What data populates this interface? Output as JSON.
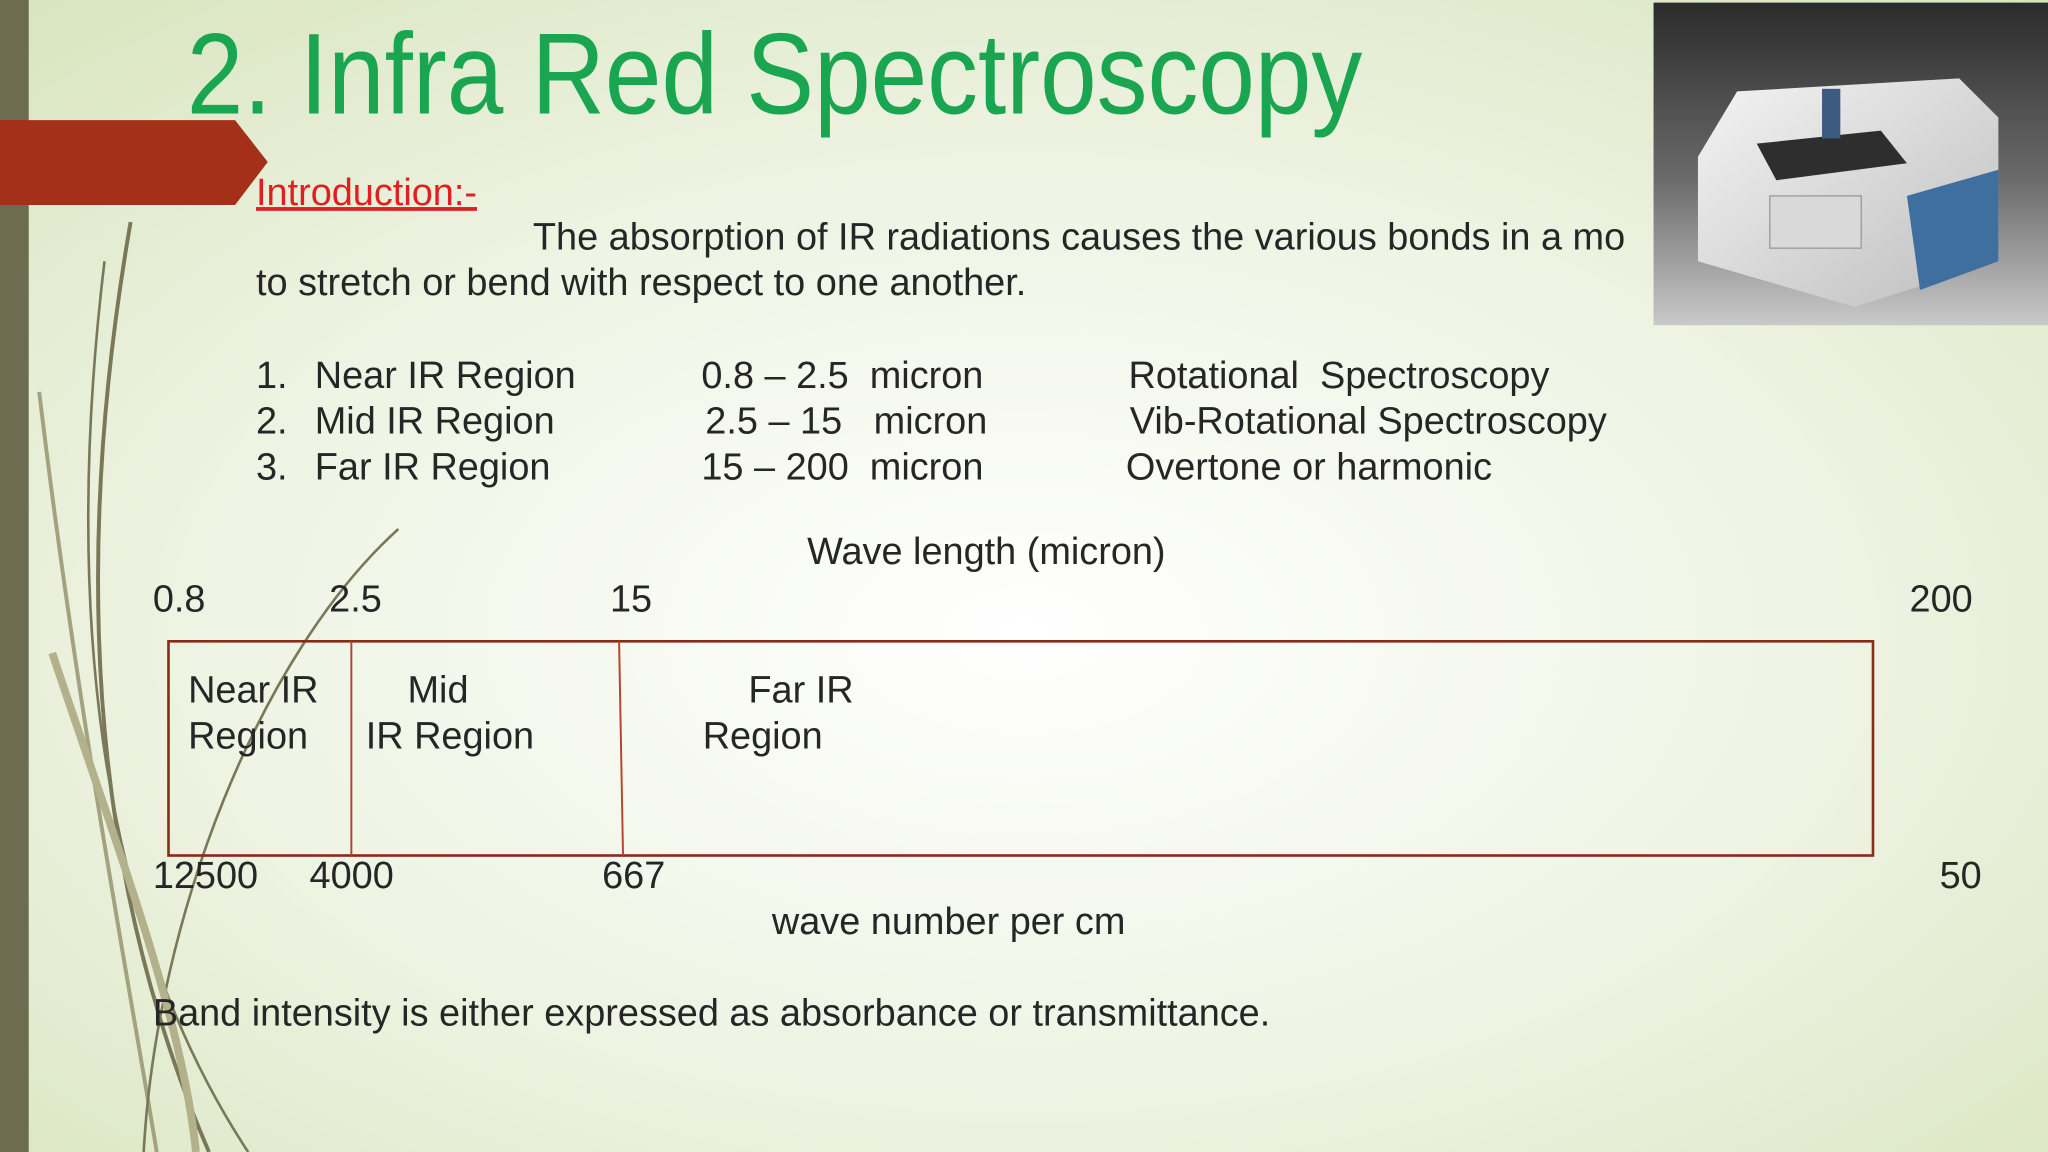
{
  "title": "2. Infra Red Spectroscopy",
  "intro": {
    "heading": "Introduction:-",
    "lines": [
      "The absorption of IR radiations causes the various bonds in a mo",
      "to stretch or bend with respect to one another."
    ]
  },
  "regions": [
    {
      "number": "1.",
      "name": "Near IR Region",
      "range": "0.8 – 2.5  micron",
      "spectroscopy": "Rotational  Spectroscopy"
    },
    {
      "number": "2.",
      "name": "Mid IR Region",
      "range": "2.5 – 15   micron",
      "spectroscopy": "Vib-Rotational Spectroscopy"
    },
    {
      "number": "3.",
      "name": "Far IR Region",
      "range": "15 – 200  micron",
      "spectroscopy": "Overtone or harmonic"
    }
  ],
  "diagram": {
    "top_label": "Wave length (micron)",
    "top_ticks": [
      "0.8",
      "2.5",
      "15",
      "200"
    ],
    "segments": [
      [
        "Near IR",
        "Region"
      ],
      [
        "Mid",
        "IR Region"
      ],
      [
        "Far IR",
        "Region"
      ]
    ],
    "bottom_ticks": [
      "12500",
      "4000",
      "667",
      "50"
    ],
    "bottom_label": "wave number per cm"
  },
  "footer": "Band intensity is either expressed as absorbance or transmittance."
}
